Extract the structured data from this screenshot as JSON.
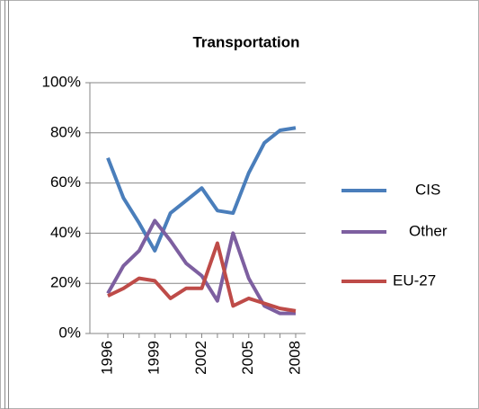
{
  "chart_data": {
    "type": "line",
    "title": "Transportation",
    "categories": [
      "1996",
      null,
      null,
      "1999",
      null,
      null,
      "2002",
      null,
      null,
      "2005",
      null,
      null,
      "2008"
    ],
    "series": [
      {
        "name": "CIS",
        "color": "#4a7ebb",
        "values": [
          70,
          54,
          44,
          33,
          48,
          53,
          58,
          49,
          48,
          64,
          76,
          81,
          82
        ]
      },
      {
        "name": "Other",
        "color": "#7d5fa0",
        "values": [
          16,
          27,
          33,
          45,
          37,
          28,
          23,
          13,
          40,
          22,
          11,
          8,
          8
        ]
      },
      {
        "name": "EU-27",
        "color": "#be4b48",
        "values": [
          15,
          18,
          22,
          21,
          14,
          18,
          18,
          36,
          11,
          14,
          12,
          10,
          9
        ]
      }
    ],
    "ylim": [
      0,
      100
    ],
    "yticks": [
      {
        "value": 0,
        "label": "0%"
      },
      {
        "value": 20,
        "label": "20%"
      },
      {
        "value": 40,
        "label": "40%"
      },
      {
        "value": 60,
        "label": "60%"
      },
      {
        "value": 80,
        "label": "80%"
      },
      {
        "value": 100,
        "label": "100%"
      }
    ],
    "grid": true,
    "legend": "right"
  }
}
